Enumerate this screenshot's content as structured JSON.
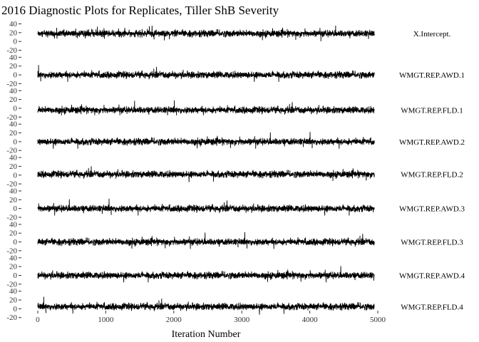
{
  "chart_data": {
    "type": "line",
    "title": "2016 Diagnostic Plots for Replicates, Tiller ShB Severity",
    "xlabel": "Iteration Number",
    "ylabel": "",
    "xlim": [
      0,
      5000
    ],
    "ylim": [
      -20,
      40
    ],
    "x_ticks": [
      0,
      1000,
      2000,
      3000,
      4000,
      5000
    ],
    "y_ticks": [
      -20,
      0,
      20,
      40
    ],
    "n_iterations": 4950,
    "grid": false,
    "legend": "none",
    "line_color": "#000000",
    "series": [
      {
        "name": "X.Intercept.",
        "center": 18,
        "spread": 3.5
      },
      {
        "name": "WMGT.REP.AWD.1",
        "center": 0,
        "spread": 3.5
      },
      {
        "name": "WMGT.REP.FLD.1",
        "center": -4,
        "spread": 3.5
      },
      {
        "name": "WMGT.REP.AWD.2",
        "center": 0,
        "spread": 3.5
      },
      {
        "name": "WMGT.REP.FLD.2",
        "center": 2,
        "spread": 3.5
      },
      {
        "name": "WMGT.REP.AWD.3",
        "center": 0,
        "spread": 3.5
      },
      {
        "name": "WMGT.REP.FLD.3",
        "center": 0,
        "spread": 3.5
      },
      {
        "name": "WMGT.REP.AWD.4",
        "center": 0,
        "spread": 3.5
      },
      {
        "name": "WMGT.REP.FLD.4",
        "center": 5,
        "spread": 3.5
      }
    ]
  }
}
